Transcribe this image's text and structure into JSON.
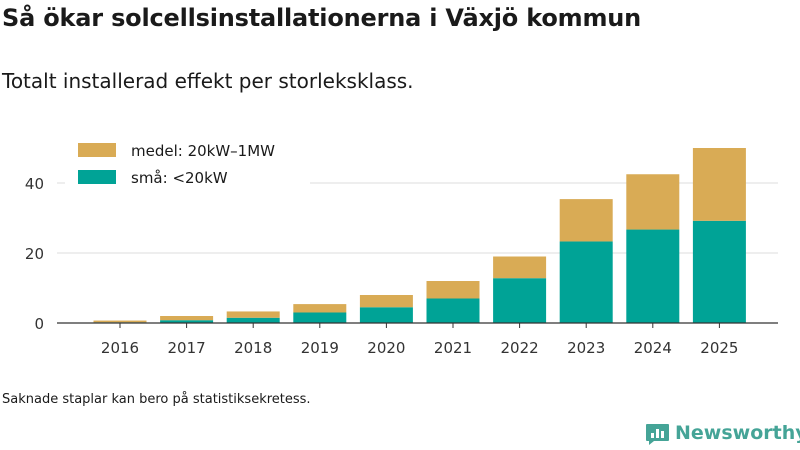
{
  "title": "Så ökar solcellsinstallationerna i Växjö kommun",
  "subtitle": "Totalt installerad effekt per storleksklass.",
  "footnote": "Saknade staplar kan bero på statistiksekretess.",
  "brand": {
    "name": "Newsworthy",
    "icon": "newsworthy-logo-icon",
    "color": "#45a497"
  },
  "chart_data": {
    "type": "bar",
    "stacked": true,
    "categories": [
      "2016",
      "2017",
      "2018",
      "2019",
      "2020",
      "2021",
      "2022",
      "2023",
      "2024",
      "2025"
    ],
    "series": [
      {
        "name": "små: <20kW",
        "color": "#00a396",
        "values": [
          0.2,
          0.8,
          1.5,
          3.0,
          4.5,
          7.0,
          12.8,
          23.3,
          26.7,
          29.2
        ]
      },
      {
        "name": "medel: 20kW–1MW",
        "color": "#d9ab55",
        "values": [
          0.5,
          1.2,
          1.8,
          2.4,
          3.5,
          5.0,
          6.2,
          12.1,
          15.8,
          20.8
        ]
      }
    ],
    "yticks": [
      0,
      20,
      40
    ],
    "ylim": [
      0,
      50
    ],
    "grid": true,
    "legend": {
      "position": "top-left",
      "items": [
        "medel: 20kW–1MW",
        "små: <20kW"
      ]
    },
    "title": "Så ökar solcellsinstallationerna i Växjö kommun",
    "xlabel": "",
    "ylabel": ""
  }
}
